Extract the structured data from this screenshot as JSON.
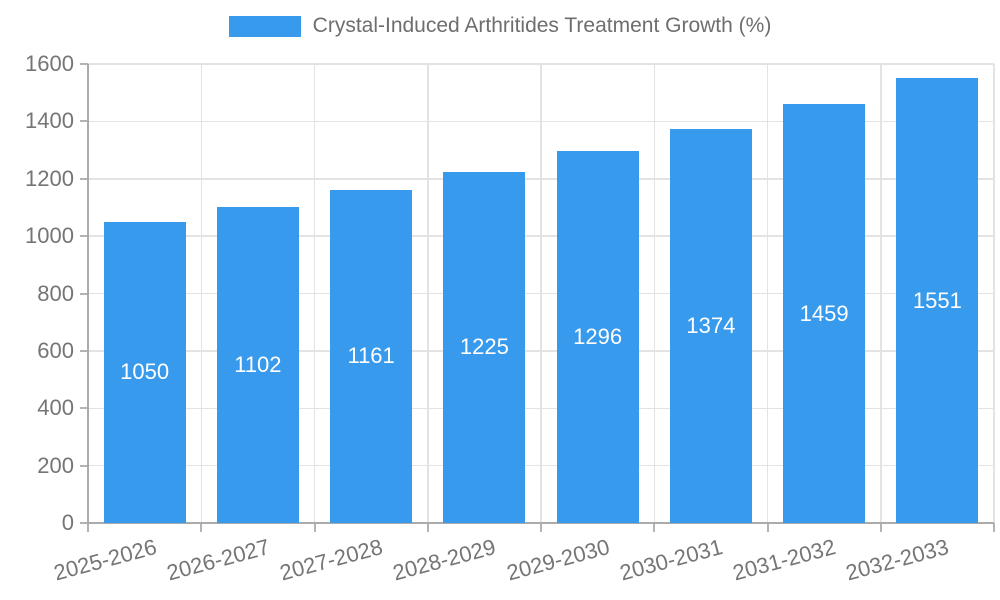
{
  "chart_data": {
    "type": "bar",
    "title": "Crystal-Induced Arthritides Treatment Growth (%)",
    "categories": [
      "2025-2026",
      "2026-2027",
      "2027-2028",
      "2028-2029",
      "2029-2030",
      "2030-2031",
      "2031-2032",
      "2032-2033"
    ],
    "values": [
      1050,
      1102,
      1161,
      1225,
      1296,
      1374,
      1459,
      1551
    ],
    "xlabel": "",
    "ylabel": "",
    "ylim": [
      0,
      1600
    ],
    "ytick_step": 200,
    "ytick_labels": [
      "0",
      "200",
      "400",
      "600",
      "800",
      "1000",
      "1200",
      "1400",
      "1600"
    ],
    "grid": true,
    "legend_position": "top",
    "bar_color": "#389AEC",
    "value_label_color": "#FFFFFF"
  },
  "colors": {
    "grid": "#E3E3E3",
    "axis": "#ABABAB",
    "tick": "#B3B3B3",
    "tick_label": "#757575",
    "legend_text": "#6E6E6E",
    "background": "#FFFFFF"
  }
}
